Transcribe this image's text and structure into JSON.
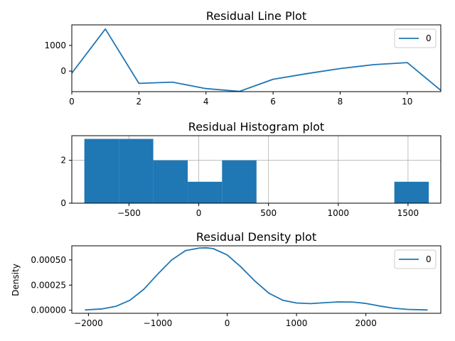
{
  "colors": {
    "series": "#1f77b4",
    "grid": "#b0b0b0",
    "frame": "#000000",
    "legend_border": "#cccccc"
  },
  "chart_data": [
    {
      "type": "line",
      "title": "Residual Line Plot",
      "xlabel": "",
      "ylabel": "",
      "xlim": [
        0,
        11
      ],
      "ylim": [
        -800,
        1800
      ],
      "xticks": [
        0,
        2,
        4,
        6,
        8,
        10
      ],
      "yticks": [
        0,
        1000
      ],
      "grid": false,
      "legend": "top-right",
      "series": [
        {
          "name": "0",
          "x": [
            0,
            1,
            2,
            3,
            4,
            5,
            6,
            7,
            8,
            9,
            10,
            11
          ],
          "y": [
            -80,
            1640,
            -480,
            -430,
            -680,
            -790,
            -320,
            -100,
            100,
            250,
            330,
            -750
          ]
        }
      ]
    },
    {
      "type": "bar",
      "title": "Residual Histogram plot",
      "xlabel": "",
      "ylabel": "",
      "xlim": [
        -910,
        1735
      ],
      "ylim": [
        0,
        3.15
      ],
      "xticks": [
        -500,
        0,
        500,
        1000,
        1500
      ],
      "yticks": [
        0,
        2
      ],
      "grid": true,
      "bins": [
        {
          "left": -820,
          "right": -573,
          "count": 3
        },
        {
          "left": -573,
          "right": -326,
          "count": 3
        },
        {
          "left": -326,
          "right": -79,
          "count": 2
        },
        {
          "left": -79,
          "right": 167,
          "count": 1
        },
        {
          "left": 167,
          "right": 414,
          "count": 2
        },
        {
          "left": 414,
          "right": 661,
          "count": 0
        },
        {
          "left": 661,
          "right": 908,
          "count": 0
        },
        {
          "left": 908,
          "right": 1155,
          "count": 0
        },
        {
          "left": 1155,
          "right": 1402,
          "count": 0
        },
        {
          "left": 1402,
          "right": 1649,
          "count": 1
        }
      ]
    },
    {
      "type": "line",
      "title": "Residual Density plot",
      "xlabel": "",
      "ylabel": "Density",
      "xlim": [
        -2240,
        3080
      ],
      "ylim": [
        -3e-05,
        0.00064
      ],
      "xticks": [
        -2000,
        -1000,
        0,
        1000,
        2000
      ],
      "ytick_values": [
        0,
        0.00025,
        0.0005
      ],
      "ytick_labels": [
        "0.00000",
        "0.00025",
        "0.00050"
      ],
      "grid": false,
      "legend": "top-right",
      "series": [
        {
          "name": "0",
          "x": [
            -2050,
            -1800,
            -1600,
            -1400,
            -1200,
            -1000,
            -800,
            -600,
            -400,
            -300,
            -200,
            0,
            200,
            400,
            600,
            800,
            1000,
            1200,
            1400,
            1600,
            1800,
            2000,
            2200,
            2400,
            2600,
            2890
          ],
          "y": [
            3e-06,
            1.4e-05,
            4e-05,
            0.0001,
            0.00021,
            0.00036,
            0.0005,
            0.000592,
            0.000618,
            0.00062,
            0.000612,
            0.00055,
            0.00043,
            0.00029,
            0.00017,
            0.0001,
            7.2e-05,
            6.6e-05,
            7.5e-05,
            8.3e-05,
            8.2e-05,
            6.8e-05,
            4.2e-05,
            2e-05,
            9e-06,
            3e-06
          ]
        }
      ]
    }
  ]
}
